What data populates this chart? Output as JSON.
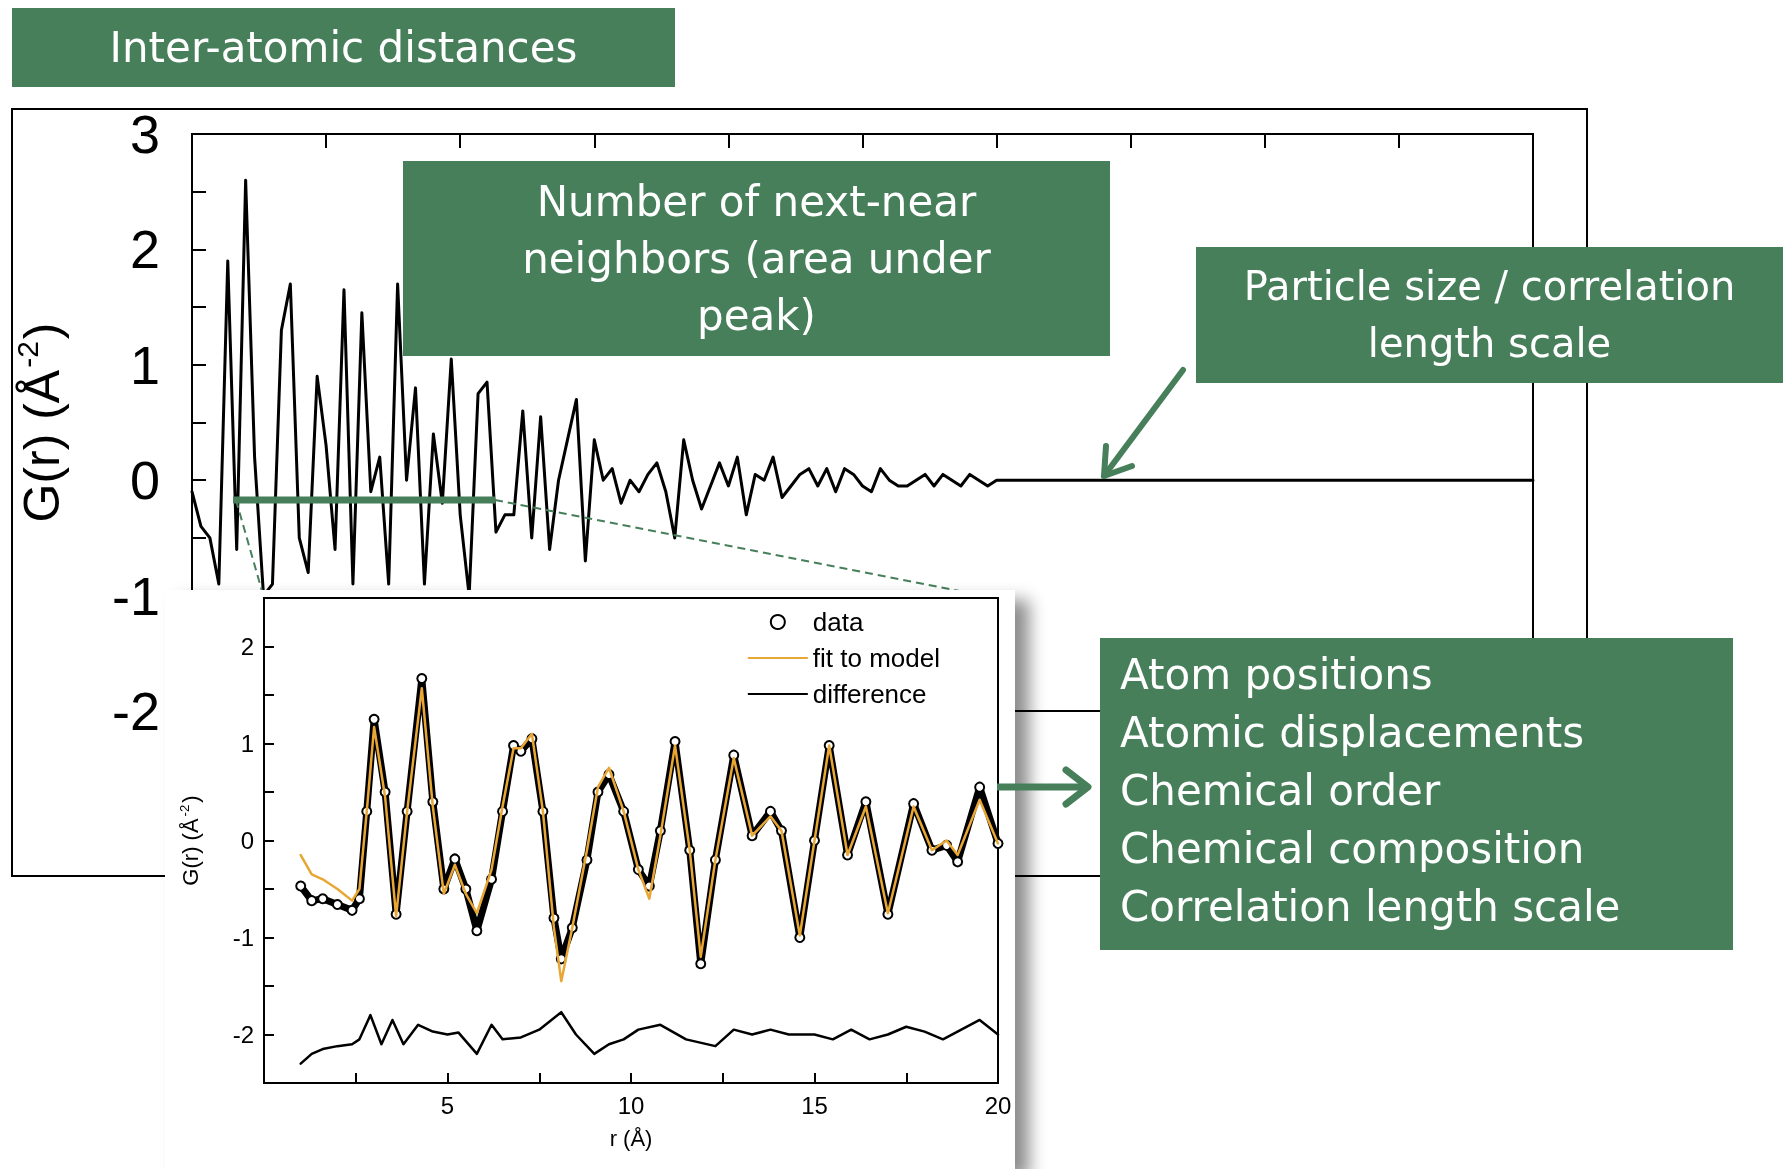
{
  "chart_data": [
    {
      "type": "line",
      "title": "Inter-atomic distances",
      "ylabel": "G(r) (Å$^{-2}$)",
      "tick_labels": "y",
      "grid": false,
      "legend": false,
      "marker": "none",
      "line_style": "solid",
      "ylim": [
        -2,
        3
      ],
      "yticks": [
        -2,
        {
          "value": -1.5,
          "label": null
        },
        -1,
        {
          "value": -0.5,
          "label": null
        },
        0,
        {
          "value": 0.5,
          "label": null
        },
        1,
        {
          "value": 1.5,
          "label": null
        },
        2,
        {
          "value": 2.5,
          "label": null
        },
        3
      ],
      "categories": [
        null,
        null,
        null,
        null,
        null,
        null,
        null,
        null,
        null,
        null,
        null,
        null,
        null,
        null,
        null,
        null,
        null,
        null,
        null,
        null,
        null,
        null,
        null,
        null,
        null,
        null,
        null,
        null,
        null,
        null,
        null,
        null,
        null,
        null,
        null,
        null,
        null,
        null,
        null,
        null,
        null,
        null,
        null,
        null,
        null,
        null,
        null,
        null,
        null,
        null,
        null,
        null,
        null,
        null,
        null,
        null,
        null,
        null,
        null,
        null,
        null,
        null,
        null,
        null,
        null,
        null,
        null,
        null,
        null,
        null,
        null,
        null,
        null,
        null,
        null,
        null,
        null,
        null,
        null,
        null,
        null,
        null,
        null,
        null,
        null,
        null,
        null,
        null,
        null,
        null,
        null,
        null,
        null,
        null,
        null,
        null,
        null,
        null,
        null,
        null,
        null,
        null,
        null,
        null,
        null,
        null,
        null,
        null,
        null,
        null,
        null,
        null,
        null,
        null,
        null,
        null,
        null,
        null,
        null,
        null,
        null,
        null,
        null,
        null,
        null,
        null,
        null,
        null,
        null,
        null,
        null,
        null,
        null,
        null,
        null,
        null,
        null,
        null,
        null,
        null,
        null,
        null,
        null,
        null,
        null,
        null,
        null,
        null,
        null,
        null,
        null
      ],
      "series": [
        {
          "color": "#000000",
          "values": [
            -0.1,
            -0.4,
            -0.5,
            -0.9,
            1.9,
            -0.6,
            2.6,
            0.2,
            -1.0,
            -0.9,
            1.3,
            1.7,
            -0.5,
            -0.8,
            0.9,
            0.3,
            -0.6,
            1.65,
            -0.9,
            1.45,
            -0.1,
            0.2,
            -0.9,
            1.7,
            0,
            0.8,
            -0.9,
            0.4,
            -0.2,
            1.05,
            -0.3,
            -1.0,
            0.75,
            0.85,
            -0.45,
            -0.3,
            -0.3,
            0.6,
            -0.5,
            0.55,
            -0.6,
            0,
            0.35,
            0.7,
            -0.7,
            0.35,
            0,
            0.1,
            -0.2,
            0,
            -0.1,
            0.05,
            0.15,
            -0.1,
            -0.5,
            0.35,
            0,
            -0.25,
            -0.05,
            0.15,
            -0.05,
            0.2,
            -0.3,
            0.05,
            0,
            0.2,
            -0.15,
            -0.05,
            0.05,
            0.1,
            -0.05,
            0.1,
            -0.1,
            0.1,
            0.05,
            -0.05,
            -0.1,
            0.1,
            0,
            -0.05,
            -0.05,
            0,
            0.05,
            -0.05,
            0.05,
            0,
            -0.05,
            0.05,
            0,
            -0.05,
            0,
            0,
            0,
            0,
            0,
            0,
            0,
            0,
            0,
            0,
            0,
            0,
            0,
            0,
            0,
            0,
            0,
            0,
            0,
            0,
            0,
            0,
            0,
            0,
            0,
            0,
            0,
            0,
            0,
            0,
            0,
            0,
            0,
            0,
            0,
            0,
            0,
            0,
            0,
            0,
            0,
            0,
            0,
            0,
            0,
            0,
            0,
            0,
            0,
            0,
            0,
            0,
            0,
            0,
            0,
            0,
            0,
            0,
            0,
            0,
            0
          ]
        }
      ],
      "annotations": [
        "Number of next-near neighbors (area under peak)",
        "Particle size / correlation length scale",
        "Atom positions\nAtomic displacements\nChemical order\nChemical composition\nCorrelation length scale"
      ]
    },
    {
      "type": "line",
      "xlabel": "r (Å)",
      "ylabel": "G(r) (Å$^{-2}$)",
      "grid": false,
      "legend": "top right",
      "line_style": "solid",
      "xlim": [
        0,
        20
      ],
      "xticks": [
        {
          "value": 2.5,
          "label": null
        },
        5,
        {
          "value": 7.5,
          "label": null
        },
        10,
        {
          "value": 12.5,
          "label": null
        },
        15,
        {
          "value": 17.5,
          "label": null
        },
        20
      ],
      "ylim": [
        -2.5,
        2.5
      ],
      "yticks": [
        -2,
        {
          "value": -1.5,
          "label": null
        },
        -1,
        {
          "value": -0.5,
          "label": null
        },
        0,
        {
          "value": 0.5,
          "label": null
        },
        1,
        {
          "value": 1.5,
          "label": null
        },
        2
      ],
      "series": [
        {
          "name": "data",
          "color": "#000000",
          "marker": "circle",
          "x": [
            1.0,
            1.3,
            1.6,
            2.0,
            2.4,
            2.6,
            2.8,
            3.0,
            3.3,
            3.6,
            3.9,
            4.3,
            4.6,
            4.9,
            5.2,
            5.5,
            5.8,
            6.2,
            6.5,
            6.8,
            7.0,
            7.3,
            7.6,
            7.9,
            8.1,
            8.4,
            8.8,
            9.1,
            9.4,
            9.8,
            10.2,
            10.5,
            10.8,
            11.2,
            11.6,
            11.9,
            12.3,
            12.8,
            13.3,
            13.8,
            14.1,
            14.6,
            15.0,
            15.4,
            15.9,
            16.4,
            17.0,
            17.7,
            18.2,
            18.6,
            18.9,
            19.5,
            20.0
          ],
          "values": [
            -0.47,
            -0.62,
            -0.6,
            -0.66,
            -0.72,
            -0.6,
            0.3,
            1.25,
            0.5,
            -0.76,
            0.3,
            1.67,
            0.4,
            -0.5,
            -0.19,
            -0.5,
            -0.93,
            -0.4,
            0.3,
            0.98,
            0.92,
            1.05,
            0.3,
            -0.8,
            -1.22,
            -0.9,
            -0.2,
            0.5,
            0.68,
            0.3,
            -0.3,
            -0.47,
            0.1,
            1.02,
            -0.1,
            -1.27,
            -0.2,
            0.88,
            0.05,
            0.3,
            0.1,
            -1.0,
            0.0,
            0.98,
            -0.15,
            0.4,
            -0.76,
            0.38,
            -0.1,
            -0.05,
            -0.22,
            0.55,
            -0.03
          ]
        },
        {
          "name": "fit to model",
          "color": "#e8a735",
          "marker": "none",
          "x": [
            1.0,
            1.3,
            1.6,
            2.0,
            2.4,
            2.6,
            2.8,
            3.0,
            3.3,
            3.6,
            3.9,
            4.3,
            4.6,
            4.9,
            5.2,
            5.5,
            5.8,
            6.2,
            6.5,
            6.8,
            7.0,
            7.3,
            7.6,
            7.9,
            8.1,
            8.4,
            8.8,
            9.1,
            9.4,
            9.8,
            10.2,
            10.5,
            10.8,
            11.2,
            11.6,
            11.9,
            12.3,
            12.8,
            13.3,
            13.8,
            14.1,
            14.6,
            15.0,
            15.4,
            15.9,
            16.4,
            17.0,
            17.7,
            18.2,
            18.6,
            18.9,
            19.5,
            20.0
          ],
          "values": [
            -0.15,
            -0.35,
            -0.4,
            -0.5,
            -0.62,
            -0.5,
            0.3,
            1.17,
            0.45,
            -0.78,
            0.3,
            1.57,
            0.35,
            -0.55,
            -0.25,
            -0.55,
            -0.75,
            -0.3,
            0.35,
            0.95,
            0.95,
            1.1,
            0.3,
            -0.9,
            -1.45,
            -0.9,
            -0.1,
            0.55,
            0.75,
            0.3,
            -0.3,
            -0.6,
            0.05,
            0.98,
            -0.1,
            -1.2,
            -0.2,
            0.85,
            0.05,
            0.25,
            0.1,
            -0.98,
            0.0,
            0.98,
            -0.15,
            0.35,
            -0.75,
            0.35,
            -0.1,
            0.0,
            -0.15,
            0.42,
            -0.03
          ]
        },
        {
          "name": "difference",
          "color": "#000000",
          "marker": "none",
          "x": [
            1.0,
            1.3,
            1.6,
            2.0,
            2.4,
            2.6,
            2.9,
            3.2,
            3.5,
            3.8,
            4.2,
            4.6,
            5.0,
            5.3,
            5.8,
            6.2,
            6.5,
            7.0,
            7.5,
            8.1,
            8.5,
            9.0,
            9.4,
            9.8,
            10.2,
            10.8,
            11.5,
            12.3,
            12.8,
            13.3,
            13.8,
            14.3,
            15.0,
            15.5,
            16.0,
            16.5,
            17.0,
            17.5,
            18.0,
            18.5,
            19.0,
            19.5,
            20.0
          ],
          "values": [
            -2.3,
            -2.2,
            -2.15,
            -2.12,
            -2.1,
            -2.05,
            -1.8,
            -2.1,
            -1.85,
            -2.1,
            -1.9,
            -1.97,
            -2.0,
            -1.98,
            -2.2,
            -1.9,
            -2.05,
            -2.03,
            -1.95,
            -1.77,
            -2.0,
            -2.2,
            -2.1,
            -2.05,
            -1.95,
            -1.9,
            -2.05,
            -2.12,
            -1.95,
            -2.0,
            -1.95,
            -2.0,
            -2.0,
            -2.05,
            -1.95,
            -2.05,
            -2.0,
            -1.92,
            -1.97,
            -2.05,
            -1.95,
            -1.85,
            -2.0
          ]
        }
      ]
    }
  ]
}
